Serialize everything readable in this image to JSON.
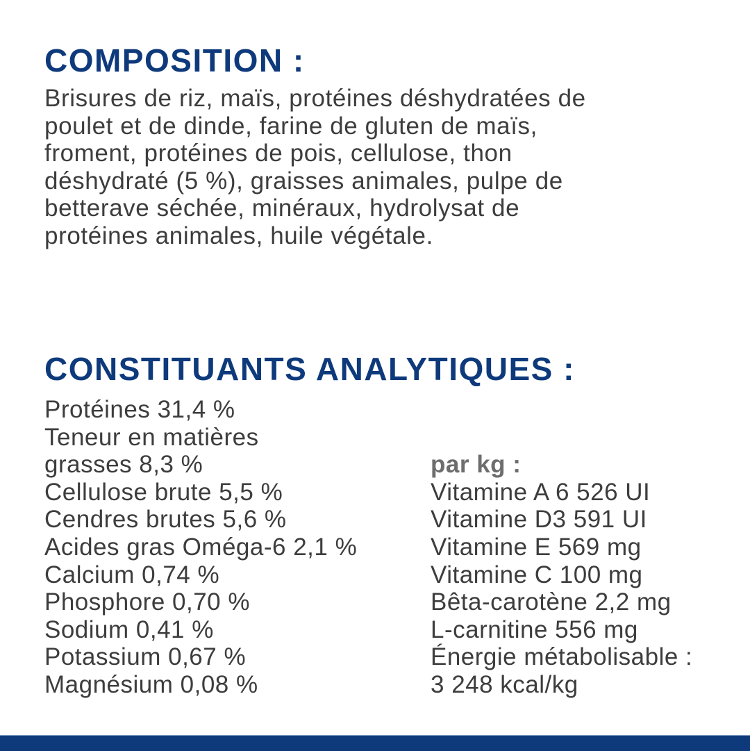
{
  "composition": {
    "title": "COMPOSITION :",
    "lines": [
      "Brisures de riz, maïs, protéines déshydratées de",
      "poulet et de dinde, farine de gluten de maïs,",
      "froment, protéines de pois, cellulose, thon",
      "déshydraté (5 %), graisses animales, pulpe de",
      "betterave séchée, minéraux, hydrolysat de",
      "protéines animales, huile végétale."
    ]
  },
  "analytics": {
    "title": "CONSTITUANTS ANALYTIQUES :",
    "left_lines": [
      "Protéines 31,4 %",
      "Teneur en matières",
      "grasses 8,3 %",
      "Cellulose brute 5,5 %",
      "Cendres brutes 5,6 %",
      "Acides gras Oméga-6 2,1 %",
      "Calcium 0,74 %",
      "Phosphore 0,70 %",
      "Sodium 0,41 %",
      "Potassium 0,67 %",
      "Magnésium 0,08 %"
    ],
    "per_kg_label": "par kg :",
    "right_lines": [
      "Vitamine A 6 526 UI",
      "Vitamine D3 591 UI",
      "Vitamine E 569 mg",
      "Vitamine C 100 mg",
      "Bêta-carotène 2,2 mg",
      "L-carnitine 556 mg",
      "Énergie métabolisable :",
      "3 248 kcal/kg"
    ]
  },
  "colors": {
    "heading": "#0e3a7c",
    "text": "#3d3d3d",
    "footer_bar": "#0e3a7c"
  }
}
